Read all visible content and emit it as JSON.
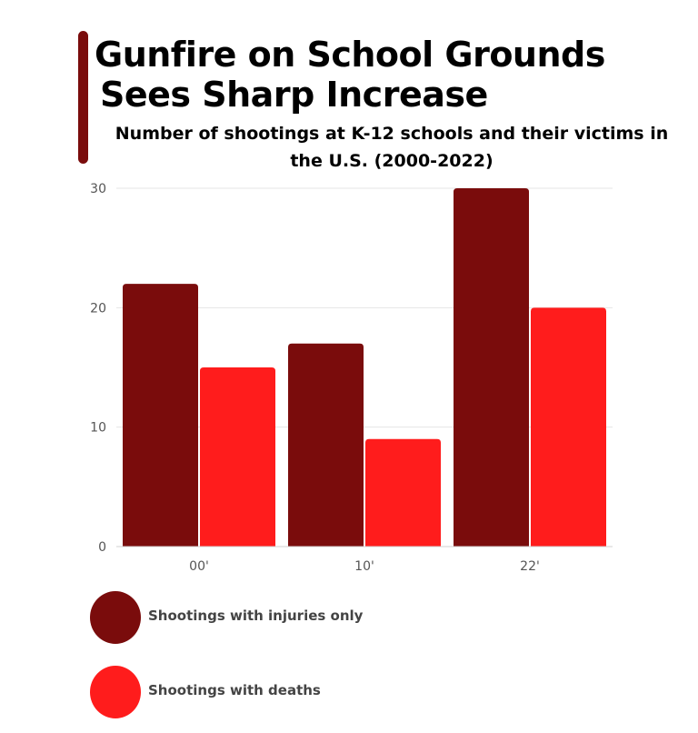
{
  "title_lines": [
    "Gunfire on School Grounds",
    "Sees Sharp Increase"
  ],
  "subtitle": "Number of shootings at K-12 schools and their victims in the U.S. (2000-2022)",
  "colors": {
    "accent": "#7a0c0c",
    "injuries": "#7a0c0c",
    "deaths": "#ff1c1c",
    "grid": "#e6e6e6"
  },
  "chart_data": {
    "type": "bar",
    "categories": [
      "00'",
      "10'",
      "22'"
    ],
    "series": [
      {
        "name": "Shootings with injuries only",
        "values": [
          22,
          17,
          30
        ],
        "color": "#7a0c0c"
      },
      {
        "name": "Shootings with deaths",
        "values": [
          15,
          9,
          20
        ],
        "color": "#ff1c1c"
      }
    ],
    "ylim": [
      0,
      30
    ],
    "yticks": [
      0,
      10,
      20,
      30
    ],
    "grid": true,
    "legend_position": "bottom-left"
  }
}
